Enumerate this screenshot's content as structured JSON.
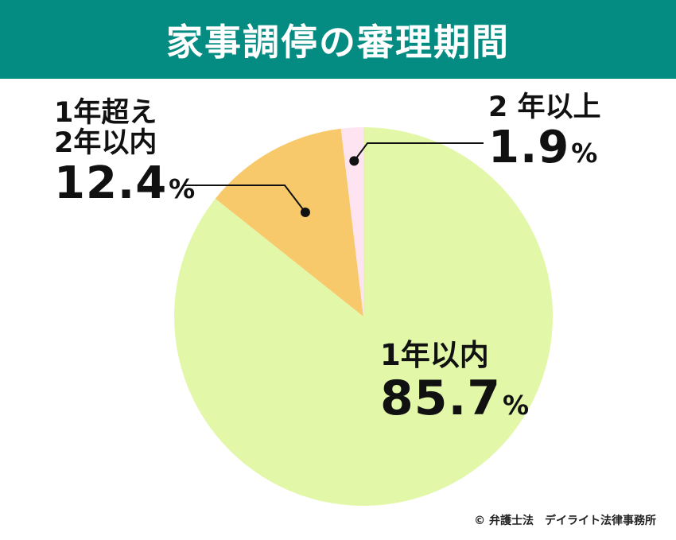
{
  "title": "家事調停の審理期間",
  "credit": "© 弁護士法　デイライト法律事務所",
  "colors": {
    "header_bg": "#058C82",
    "slice_1": "#E2F8A8",
    "slice_2": "#F7C96A",
    "slice_3": "#FDE4F0",
    "leader": "#111111"
  },
  "chart_data": {
    "type": "pie",
    "slices": [
      {
        "label_line1": "1年以内",
        "label_line2": "",
        "value": 85.7,
        "value_text": "85.7",
        "unit": "%"
      },
      {
        "label_line1": "1年超え",
        "label_line2": "2年以内",
        "value": 12.4,
        "value_text": "12.4",
        "unit": "%"
      },
      {
        "label_line1": "2 年以上",
        "label_line2": "",
        "value": 1.9,
        "value_text": "1.9",
        "unit": "%"
      }
    ],
    "order": "clockwise from top",
    "legend": "none",
    "grid": false
  }
}
